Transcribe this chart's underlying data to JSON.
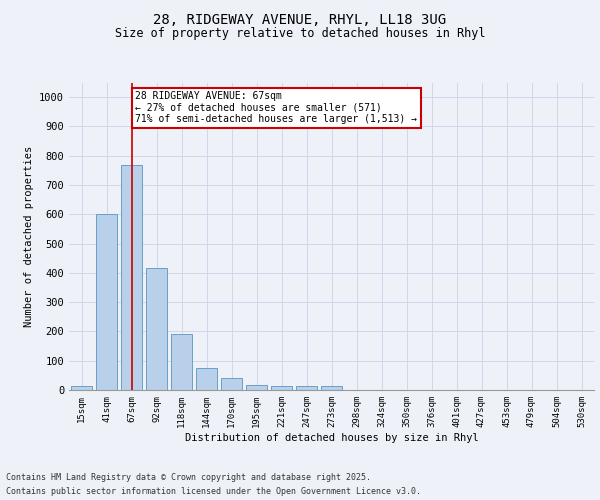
{
  "title_line1": "28, RIDGEWAY AVENUE, RHYL, LL18 3UG",
  "title_line2": "Size of property relative to detached houses in Rhyl",
  "xlabel": "Distribution of detached houses by size in Rhyl",
  "ylabel": "Number of detached properties",
  "categories": [
    "15sqm",
    "41sqm",
    "67sqm",
    "92sqm",
    "118sqm",
    "144sqm",
    "170sqm",
    "195sqm",
    "221sqm",
    "247sqm",
    "273sqm",
    "298sqm",
    "324sqm",
    "350sqm",
    "376sqm",
    "401sqm",
    "427sqm",
    "453sqm",
    "479sqm",
    "504sqm",
    "530sqm"
  ],
  "values": [
    15,
    600,
    770,
    415,
    190,
    75,
    40,
    18,
    15,
    12,
    15,
    0,
    0,
    0,
    0,
    0,
    0,
    0,
    0,
    0,
    0
  ],
  "bar_color": "#b8d0ea",
  "bar_edge_color": "#6a9fc8",
  "grid_color": "#ccd8ea",
  "background_color": "#eef2f8",
  "property_line_x": 2,
  "annotation_text": "28 RIDGEWAY AVENUE: 67sqm\n← 27% of detached houses are smaller (571)\n71% of semi-detached houses are larger (1,513) →",
  "annotation_box_color": "#ffffff",
  "annotation_border_color": "#cc0000",
  "ylim": [
    0,
    1050
  ],
  "yticks": [
    0,
    100,
    200,
    300,
    400,
    500,
    600,
    700,
    800,
    900,
    1000
  ],
  "footer_line1": "Contains HM Land Registry data © Crown copyright and database right 2025.",
  "footer_line2": "Contains public sector information licensed under the Open Government Licence v3.0."
}
